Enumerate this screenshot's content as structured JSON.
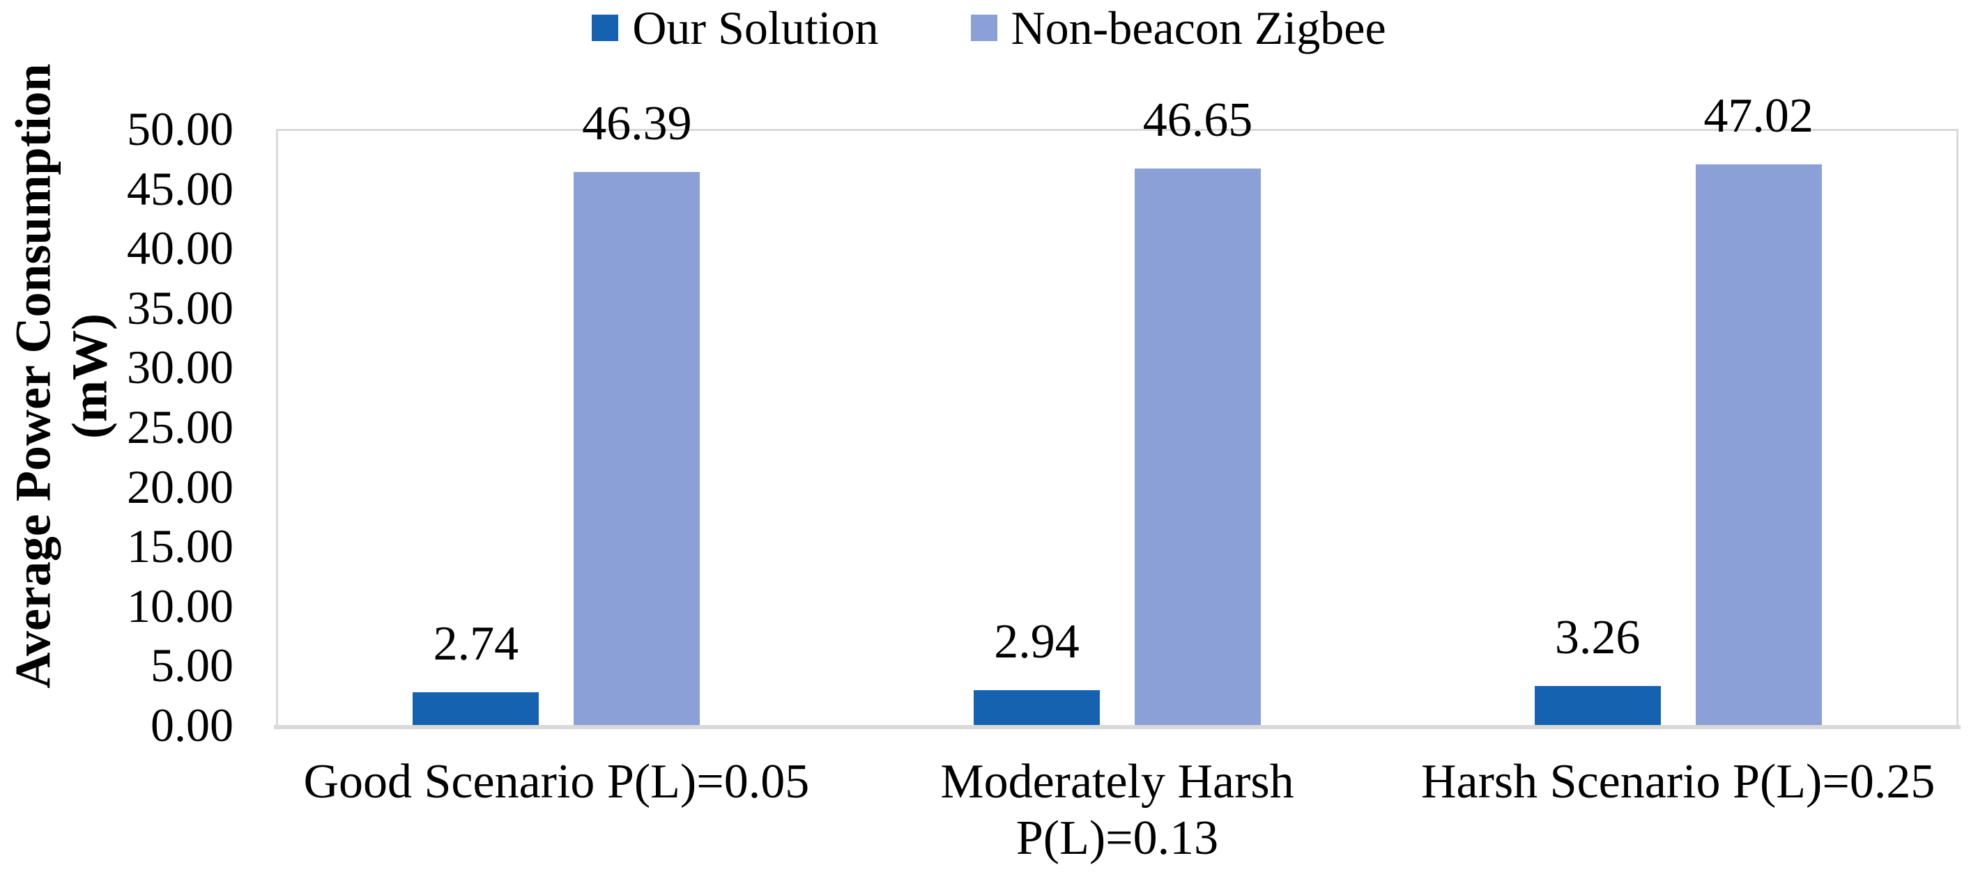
{
  "chart_data": {
    "type": "bar",
    "title": "",
    "ylabel": "Average Power Consumption\n(mW)",
    "xlabel": "",
    "ylim": [
      0,
      50
    ],
    "ytick_interval": 5,
    "ytick_labels": [
      "50.00",
      "45.00",
      "40.00",
      "35.00",
      "30.00",
      "25.00",
      "20.00",
      "15.00",
      "10.00",
      "5.00",
      "0.00"
    ],
    "grid": "off",
    "plot_border": "light-gray",
    "legend_position": "top-center",
    "categories": [
      "Good Scenario P(L)=0.05",
      "Moderately Harsh\nP(L)=0.13",
      "Harsh Scenario P(L)=0.25"
    ],
    "series": [
      {
        "name": "Our Solution",
        "color": "#1563B0",
        "values": [
          2.74,
          2.94,
          3.26
        ],
        "labels": [
          "2.74",
          "2.94",
          "3.26"
        ]
      },
      {
        "name": "Non-beacon Zigbee",
        "color": "#8BA0D6",
        "values": [
          46.39,
          46.65,
          47.02
        ],
        "labels": [
          "46.39",
          "46.65",
          "47.02"
        ]
      }
    ],
    "colors": {
      "grid_border": "#D9D9D9",
      "axis_line": "#D9D9D9",
      "text": "#000000",
      "background": "#FFFFFF"
    }
  }
}
